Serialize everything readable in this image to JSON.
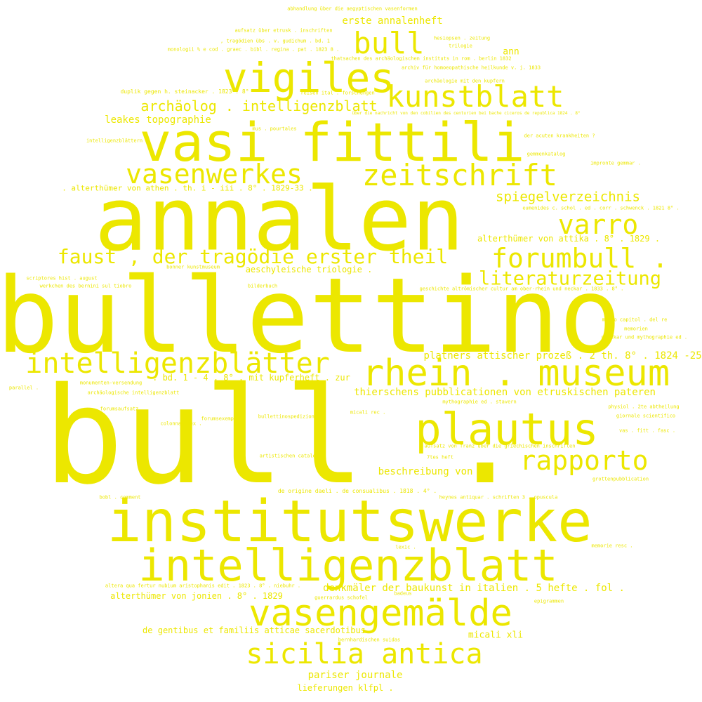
{
  "words": [
    {
      "text": "bull ."
    },
    {
      "text": "bullettino"
    },
    {
      "text": "annalen"
    },
    {
      "text": "institutswerke"
    },
    {
      "text": "vasi fittili"
    },
    {
      "text": "intelligenzblatt"
    },
    {
      "text": "rhein . museum"
    },
    {
      "text": "plautus"
    },
    {
      "text": "vigiles"
    },
    {
      "text": "vasengemälde"
    },
    {
      "text": "intelligenzblätter"
    },
    {
      "text": "sicilia antica"
    },
    {
      "text": "kunstblatt"
    },
    {
      "text": "zeitschrift"
    },
    {
      "text": "bull"
    },
    {
      "text": "vasenwerkes"
    },
    {
      "text": "forumbull ."
    },
    {
      "text": "rapporto"
    },
    {
      "text": "varro"
    },
    {
      "text": "faust , der tragödie erster theil"
    },
    {
      "text": "literaturzeitung"
    },
    {
      "text": "archäolog . intelligenzblatt"
    },
    {
      "text": "spiegelverzeichnis"
    },
    {
      "text": "thierschens pubblicationen von etruskischen pateren"
    },
    {
      "text": "platners attischer prozeß . 2 th. 8° . 1824 -25 ."
    },
    {
      "text": ". bd. 1 - 4 . 8° . mit kupferheft . zur"
    },
    {
      "text": "erste annalenheft"
    },
    {
      "text": "leakes topographie"
    },
    {
      "text": ". alterthümer von athen . th. i - iii . 8° . 1829-33 ."
    },
    {
      "text": "alterthümer von attika . 8° . 1829 ."
    },
    {
      "text": "aeschyleische triologie ."
    },
    {
      "text": "beschreibung von"
    },
    {
      "text": "denkmäler der baukunst in italien . 5 hefte . fol ."
    },
    {
      "text": "alterthümer von jonien . 8° . 1829"
    },
    {
      "text": "de gentibus et familiis atticae sacerdotibus"
    },
    {
      "text": "micali xli"
    },
    {
      "text": "pariser journale"
    },
    {
      "text": "lieferungen klfpl ."
    },
    {
      "text": "ann"
    },
    {
      "text": "abhandlung über die aegyptischen vasenformen"
    },
    {
      "text": "aufsatz über etrusk . inschriften"
    },
    {
      "text": ", tragödien übs . v. gudichum . bd. 1"
    },
    {
      "text": "monologii % e cod . graec . bibl . regina . pat . 1823 8 ."
    },
    {
      "text": "hesiopsen . zeitung"
    },
    {
      "text": "trilogie"
    },
    {
      "text": "thatsachen des archäologischen instituts in rom . berlin 1832"
    },
    {
      "text": "archiv für homoeopathische heilkunde v. j. 1833"
    },
    {
      "text": "archäologie mit den kupfern"
    },
    {
      "text": "duplik gegen h. steinacker . 1823 . 8°"
    },
    {
      "text": "reisen ital . forschungen"
    },
    {
      "text": "über die nachricht von den cobilien des centurien bei bache ciceros de republica 1824 . 8°"
    },
    {
      "text": "intelligenzblättern"
    },
    {
      "text": "mus . pourtales"
    },
    {
      "text": "der acuten krankheiten ?"
    },
    {
      "text": "gemmenkatalog"
    },
    {
      "text": "impronte gemmar ."
    },
    {
      "text": "eumenides c. schol . ed . corr . schwenck . 1821 8° ."
    },
    {
      "text": "bonner kunstmuseum"
    },
    {
      "text": "scriptores hist . august"
    },
    {
      "text": "bilderbuch"
    },
    {
      "text": "geschichte altrömischer cultur am ober-rhein und neckar . 1833 . 8° ."
    },
    {
      "text": "werkchen des bernini sul tiobro"
    },
    {
      "text": "museo capitol . del re"
    },
    {
      "text": "memorien"
    },
    {
      "text": "munckar und mythographie ed ."
    },
    {
      "text": "monumenten-versendung"
    },
    {
      "text": "parallel ."
    },
    {
      "text": "archäologische intelligenzblatt"
    },
    {
      "text": "mythographie ed . stavern"
    },
    {
      "text": "physiol . 2te abtheilung"
    },
    {
      "text": "forumsaufsatz"
    },
    {
      "text": "colonna alex ."
    },
    {
      "text": "micali rec ."
    },
    {
      "text": "giornale scientifico"
    },
    {
      "text": "forumsexemplar"
    },
    {
      "text": "bullettinospedizionen"
    },
    {
      "text": "vas . fitt . fasc ."
    },
    {
      "text": "aufsatz von franz über die griechischen inschriften"
    },
    {
      "text": "artistischen catalogs"
    },
    {
      "text": "7tes heft"
    },
    {
      "text": "grottenpubblication"
    },
    {
      "text": "de origine daeli . de consualibus . 1818 . 4° ."
    },
    {
      "text": "heynes antiquar . schriften 3 . opuscula"
    },
    {
      "text": "bobl . comment"
    },
    {
      "text": "lexic ."
    },
    {
      "text": "memorie resc ."
    },
    {
      "text": "altera qua fertur nubium aristophanis edit . 1823 . 8° . niebuhr ."
    },
    {
      "text": "badeus"
    },
    {
      "text": "guerrardus schofel"
    },
    {
      "text": "epigrammen"
    },
    {
      "text": "bernhardischen suidas"
    }
  ]
}
